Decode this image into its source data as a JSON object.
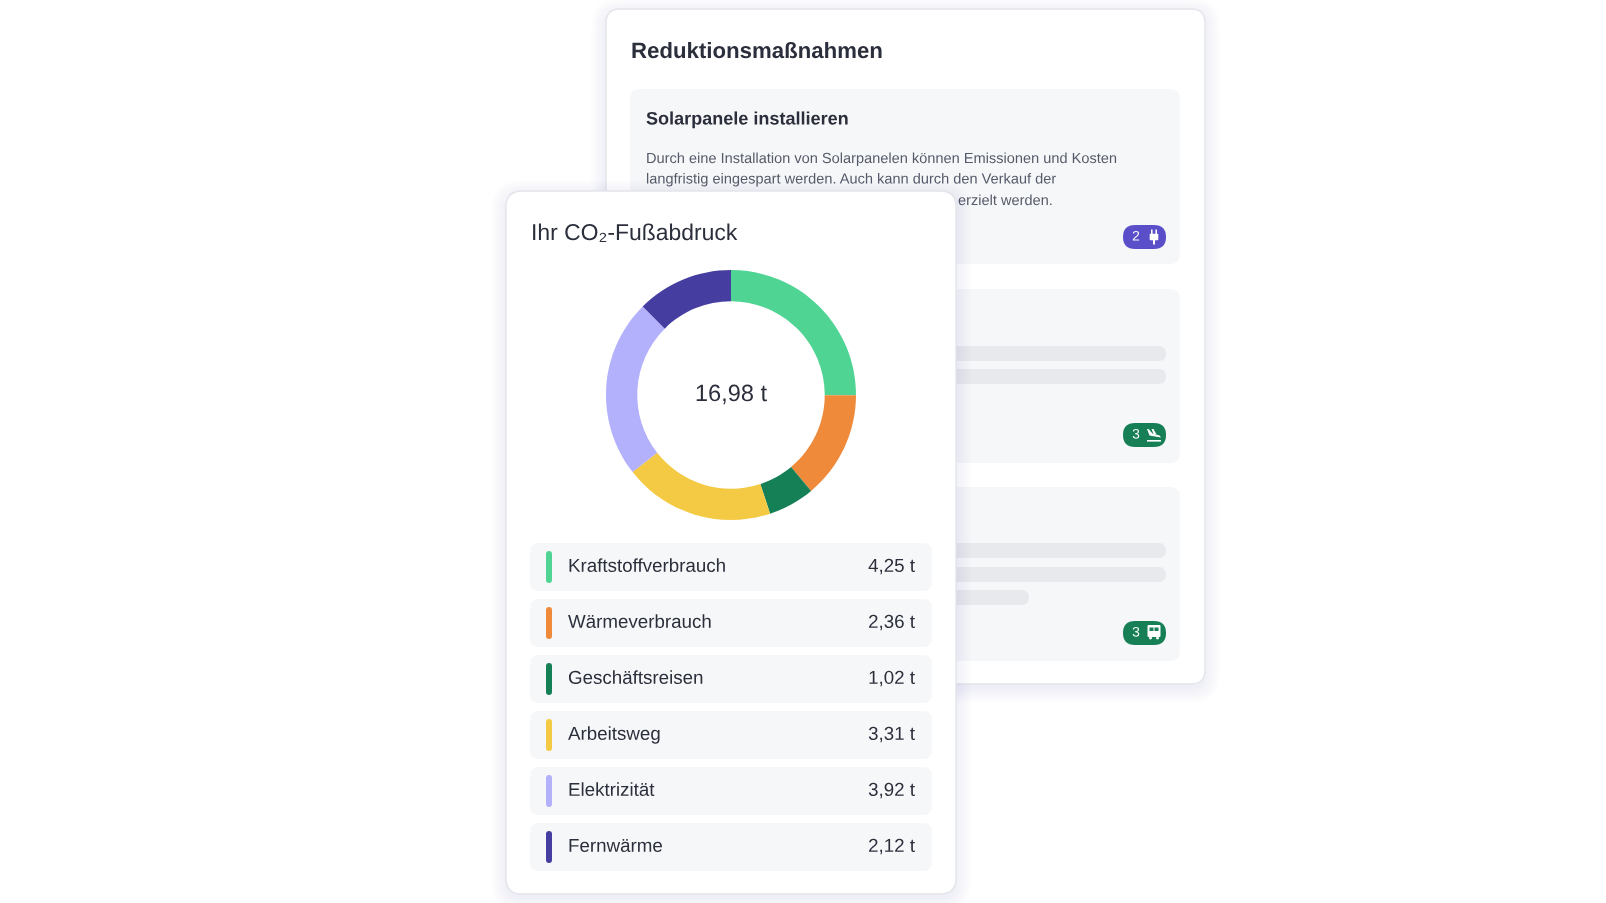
{
  "chart_data": [
    {
      "type": "donut",
      "title": "Ihr CO₂-Fußabdruck",
      "categories": [
        "Kraftstoffverbrauch",
        "Wärmeverbrauch",
        "Geschäftsreisen",
        "Arbeitsweg",
        "Elektrizität",
        "Fernwärme"
      ],
      "values": [
        4.25,
        2.36,
        1.02,
        3.31,
        3.92,
        2.12
      ],
      "colors": [
        "#4fd494",
        "#ef8a3a",
        "#157f56",
        "#f4ca45",
        "#b3b0fc",
        "#453da0"
      ],
      "value_labels": [
        "4,25 t",
        "2,36 t",
        "1,02 t",
        "3,31 t",
        "3,92 t",
        "2,12 t"
      ],
      "annotations": [
        "16,98 t"
      ],
      "legend": "bottom"
    },
    {
      "type": "other",
      "title": "Reduktionsmaßnahmen",
      "annotations": [
        "Solarpanele installieren",
        "Durch eine Installation von Solarpanelen können Emissionen und Kosten",
        "langfristig eingespart werden. Auch kann durch den Verkauf der",
        "erzielt werden.",
        "2",
        "3",
        "3"
      ]
    }
  ]
}
